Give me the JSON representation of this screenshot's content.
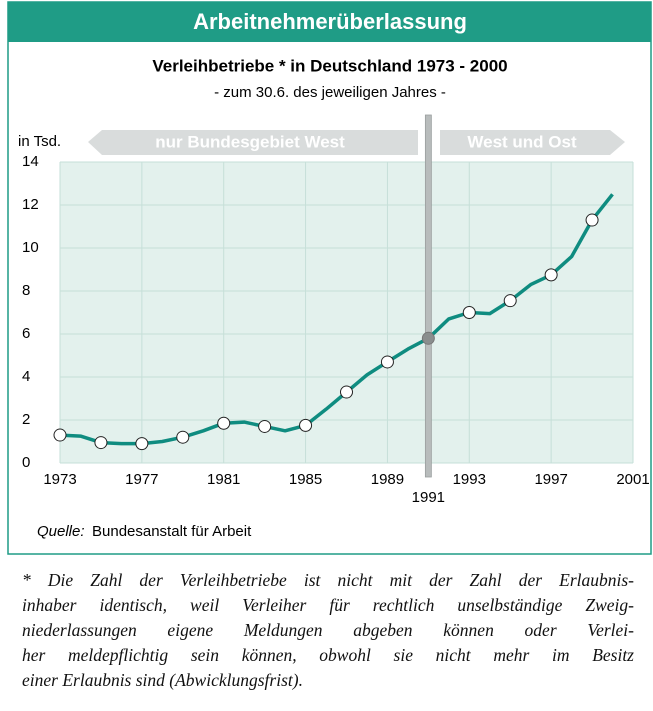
{
  "chart_data": {
    "type": "line",
    "header": "Arbeitnehmerüberlassung",
    "title": "Verleihbetriebe  * in Deutschland 1973 - 2000",
    "subtitle": "- zum 30.6. des jeweiligen Jahres -",
    "y_label": "in Tsd.",
    "regions": [
      "nur Bundesgebiet West",
      "West und Ost"
    ],
    "x": [
      1973,
      1974,
      1975,
      1976,
      1977,
      1978,
      1979,
      1980,
      1981,
      1982,
      1983,
      1984,
      1985,
      1986,
      1987,
      1988,
      1989,
      1990,
      1991,
      1992,
      1993,
      1994,
      1995,
      1996,
      1997,
      1998,
      1999,
      2000
    ],
    "values": [
      1.3,
      1.25,
      0.95,
      0.9,
      0.9,
      1.0,
      1.2,
      1.5,
      1.85,
      1.9,
      1.7,
      1.5,
      1.75,
      2.5,
      3.3,
      4.1,
      4.7,
      5.3,
      5.8,
      6.7,
      7.0,
      6.95,
      7.55,
      8.3,
      8.75,
      9.6,
      11.3,
      12.5
    ],
    "color": "#0f8c80",
    "highlight_x": 1991,
    "xlim": [
      1973,
      2001
    ],
    "xticks": [
      1973,
      1977,
      1981,
      1985,
      1989,
      1993,
      1997,
      2001
    ],
    "ylim": [
      0,
      14
    ],
    "yticks": [
      0,
      2,
      4,
      6,
      8,
      10,
      12,
      14
    ],
    "grid": true,
    "source_label": "Quelle:",
    "source": "Bundesanstalt für Arbeit",
    "footnote": [
      "* Die Zahl der Verleihbetriebe ist nicht mit der Zahl der Erlaubnis-",
      "inhaber identisch, weil Verleiher für rechtlich unselbständige Zweig-",
      "niederlassungen eigene Meldungen abgeben können oder Verlei-",
      "her meldepflichtig sein können, obwohl sie nicht mehr im Besitz",
      "einer Erlaubnis sind (Abwicklungsfrist)."
    ]
  }
}
